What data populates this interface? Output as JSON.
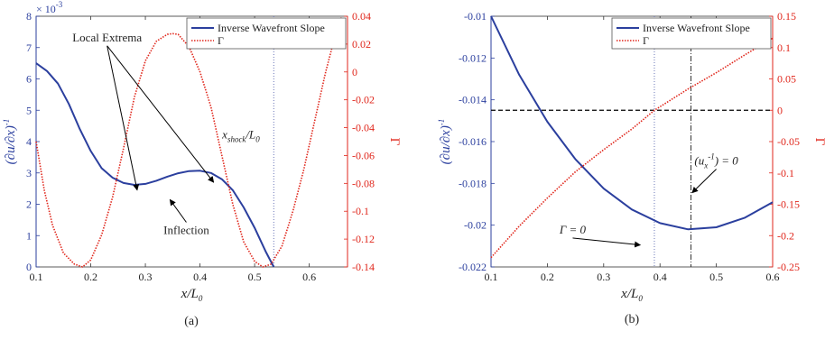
{
  "figure": {
    "panel_labels": [
      "(a)",
      "(b)"
    ]
  },
  "colors": {
    "slope": "#2b3f9e",
    "gamma": "#e0261b",
    "axis": "#333333",
    "zero_line": "#000000",
    "marker_line": "#6a76b8"
  },
  "chart_data": [
    {
      "panel": "(a)",
      "type": "line",
      "xlabel": "x/L_0",
      "ylabel_left": "(∂u/∂x)^{-1}",
      "ylabel_right": "Γ",
      "exponent_label": "× 10^{-3}",
      "xlim": [
        0.1,
        0.67
      ],
      "ylim_left": [
        0,
        8
      ],
      "ylim_right": [
        -0.14,
        0.04
      ],
      "xticks": [
        0.1,
        0.2,
        0.3,
        0.4,
        0.5,
        0.6
      ],
      "xtick_labels": [
        "0.1",
        "0.2",
        "0.3",
        "0.4",
        "0.5",
        "0.6"
      ],
      "yticks_left": [
        0,
        1,
        2,
        3,
        4,
        5,
        6,
        7,
        8
      ],
      "ytick_labels_left": [
        "0",
        "1",
        "2",
        "3",
        "4",
        "5",
        "6",
        "7",
        "8"
      ],
      "yticks_right": [
        -0.14,
        -0.12,
        -0.1,
        -0.08,
        -0.06,
        -0.04,
        -0.02,
        0,
        0.02,
        0.04
      ],
      "ytick_labels_right": [
        "-0.14",
        "-0.12",
        "-0.1",
        "-0.08",
        "-0.06",
        "-0.04",
        "-0.02",
        "0",
        "0.02",
        "0.04"
      ],
      "legend": [
        "Inverse Wavefront Slope",
        "Γ"
      ],
      "legend_position": "top-right",
      "series": [
        {
          "name": "Inverse Wavefront Slope",
          "axis": "left",
          "style": "solid",
          "x": [
            0.1,
            0.12,
            0.14,
            0.16,
            0.18,
            0.2,
            0.22,
            0.24,
            0.26,
            0.28,
            0.3,
            0.32,
            0.34,
            0.36,
            0.38,
            0.4,
            0.42,
            0.44,
            0.46,
            0.48,
            0.5,
            0.52,
            0.535
          ],
          "y": [
            6.5,
            6.25,
            5.85,
            5.2,
            4.4,
            3.7,
            3.15,
            2.85,
            2.68,
            2.62,
            2.65,
            2.75,
            2.88,
            2.99,
            3.06,
            3.07,
            3.0,
            2.8,
            2.45,
            1.9,
            1.25,
            0.5,
            0.0
          ]
        },
        {
          "name": "Γ",
          "axis": "right",
          "style": "dotted",
          "x": [
            0.1,
            0.115,
            0.13,
            0.15,
            0.17,
            0.185,
            0.2,
            0.22,
            0.24,
            0.26,
            0.28,
            0.3,
            0.32,
            0.34,
            0.35,
            0.36,
            0.38,
            0.4,
            0.42,
            0.44,
            0.46,
            0.48,
            0.5,
            0.515,
            0.53,
            0.55,
            0.57,
            0.59,
            0.61,
            0.63,
            0.65,
            0.66
          ],
          "y": [
            -0.05,
            -0.085,
            -0.11,
            -0.13,
            -0.138,
            -0.14,
            -0.135,
            -0.117,
            -0.09,
            -0.055,
            -0.018,
            0.008,
            0.022,
            0.027,
            0.0275,
            0.027,
            0.018,
            0.0,
            -0.025,
            -0.06,
            -0.095,
            -0.122,
            -0.136,
            -0.14,
            -0.138,
            -0.125,
            -0.1,
            -0.07,
            -0.035,
            0.0,
            0.03,
            0.04
          ]
        }
      ],
      "vline_x": 0.535,
      "annotations": [
        {
          "text": "Local Extrema",
          "at": [
            0.23,
            7.2
          ],
          "arrows_to": [
            [
              0.285,
              2.45
            ],
            [
              0.425,
              2.7
            ]
          ]
        },
        {
          "text": "Inflection",
          "at": [
            0.375,
            1.05
          ],
          "arrows_to": [
            [
              0.345,
              2.15
            ]
          ]
        },
        {
          "text": "x_shock/L_0",
          "at": [
            0.475,
            4.1
          ]
        }
      ]
    },
    {
      "panel": "(b)",
      "type": "line",
      "xlabel": "x/L_0",
      "ylabel_left": "(∂u/∂x)^{-1}",
      "ylabel_right": "Γ",
      "xlim": [
        0.1,
        0.6
      ],
      "ylim_left": [
        -0.022,
        -0.01
      ],
      "ylim_right": [
        -0.25,
        0.15
      ],
      "xticks": [
        0.1,
        0.2,
        0.3,
        0.4,
        0.5,
        0.6
      ],
      "xtick_labels": [
        "0.1",
        "0.2",
        "0.3",
        "0.4",
        "0.5",
        "0.6"
      ],
      "yticks_left": [
        -0.022,
        -0.02,
        -0.018,
        -0.016,
        -0.014,
        -0.012,
        -0.01
      ],
      "ytick_labels_left": [
        "-0.022",
        "-0.02",
        "-0.018",
        "-0.016",
        "-0.014",
        "-0.012",
        "-0.01"
      ],
      "yticks_right": [
        -0.25,
        -0.2,
        -0.15,
        -0.1,
        -0.05,
        0,
        0.05,
        0.1,
        0.15
      ],
      "ytick_labels_right": [
        "-0.25",
        "-0.2",
        "-0.15",
        "-0.1",
        "-0.05",
        "0",
        "0.05",
        "0.1",
        "0.15"
      ],
      "legend": [
        "Inverse Wavefront Slope",
        "Γ"
      ],
      "legend_position": "top-right",
      "series": [
        {
          "name": "Inverse Wavefront Slope",
          "axis": "left",
          "style": "solid",
          "x": [
            0.1,
            0.15,
            0.2,
            0.25,
            0.3,
            0.35,
            0.4,
            0.45,
            0.5,
            0.55,
            0.6
          ],
          "y": [
            -0.01,
            -0.0128,
            -0.01505,
            -0.01685,
            -0.01825,
            -0.01925,
            -0.0199,
            -0.0202,
            -0.0201,
            -0.01965,
            -0.0189
          ]
        },
        {
          "name": "Γ",
          "axis": "right",
          "style": "dotted",
          "x": [
            0.1,
            0.15,
            0.2,
            0.25,
            0.3,
            0.35,
            0.39,
            0.45,
            0.5,
            0.55,
            0.6
          ],
          "y": [
            -0.235,
            -0.185,
            -0.14,
            -0.098,
            -0.063,
            -0.03,
            0.0,
            0.034,
            0.06,
            0.088,
            0.115
          ]
        }
      ],
      "hline_gamma": 0,
      "vlines_x": [
        0.39,
        0.455
      ],
      "annotations": [
        {
          "text": "Γ = 0",
          "at": [
            0.245,
            -0.0204
          ],
          "arrows_to": [
            [
              0.365,
              -0.02095
            ]
          ]
        },
        {
          "text": "(u_x^{-1}) = 0",
          "at": [
            0.5,
            -0.0171
          ],
          "arrows_to": [
            [
              0.457,
              -0.01845
            ]
          ]
        }
      ]
    }
  ]
}
